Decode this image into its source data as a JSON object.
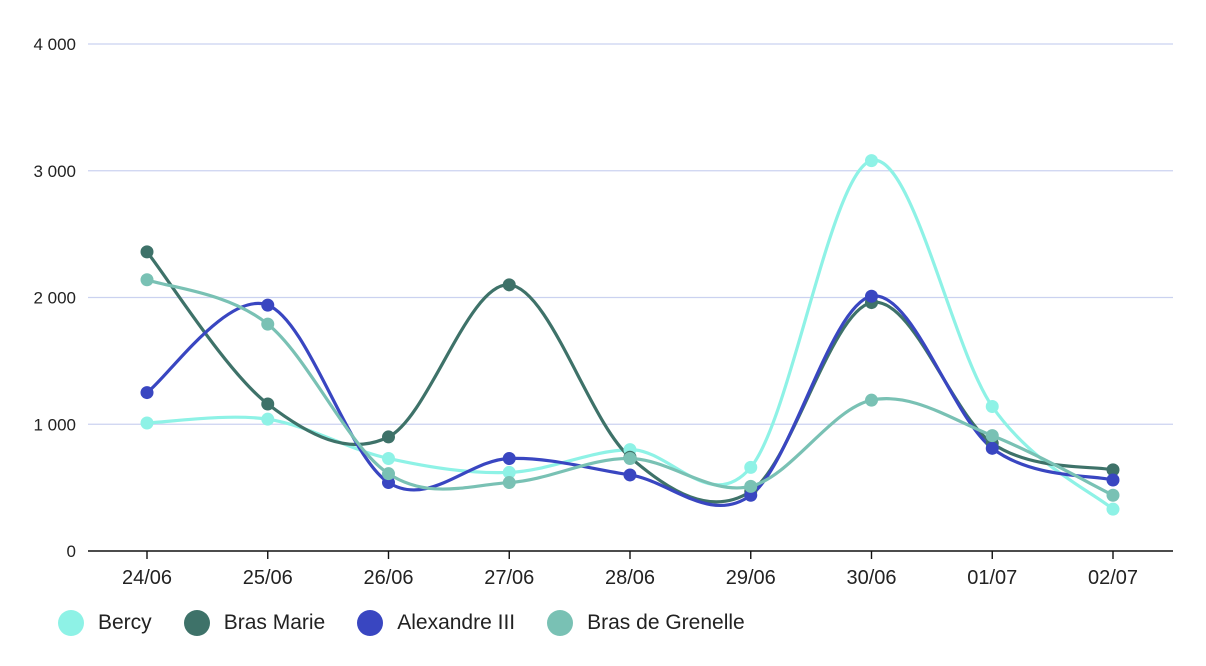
{
  "chart_data": {
    "type": "line",
    "title": "",
    "xlabel": "",
    "ylabel": "",
    "categories": [
      "24/06",
      "25/06",
      "26/06",
      "27/06",
      "28/06",
      "29/06",
      "30/06",
      "01/07",
      "02/07"
    ],
    "ylim": [
      0,
      4000
    ],
    "yticks": [
      {
        "value": 0,
        "label": "0"
      },
      {
        "value": 1000,
        "label": "1 000"
      },
      {
        "value": 2000,
        "label": "2 000"
      },
      {
        "value": 3000,
        "label": "3 000"
      },
      {
        "value": 4000,
        "label": "4 000"
      }
    ],
    "grid": "horizontal",
    "legend_position": "bottom-left",
    "series": [
      {
        "name": "Bercy",
        "color": "#8EF2E6",
        "values": [
          1010,
          1040,
          730,
          620,
          800,
          660,
          3080,
          1140,
          330
        ]
      },
      {
        "name": "Bras Marie",
        "color": "#3E7269",
        "values": [
          2360,
          1160,
          900,
          2100,
          740,
          470,
          1960,
          850,
          640
        ]
      },
      {
        "name": "Alexandre III",
        "color": "#3946C1",
        "values": [
          1250,
          1940,
          540,
          730,
          600,
          440,
          2010,
          810,
          560
        ]
      },
      {
        "name": "Bras de Grenelle",
        "color": "#79C1B4",
        "values": [
          2140,
          1790,
          610,
          540,
          730,
          510,
          1190,
          910,
          440
        ]
      }
    ],
    "colors": {
      "grid": "#CBD2F0",
      "axis": "#111111",
      "text": "#222222"
    }
  }
}
